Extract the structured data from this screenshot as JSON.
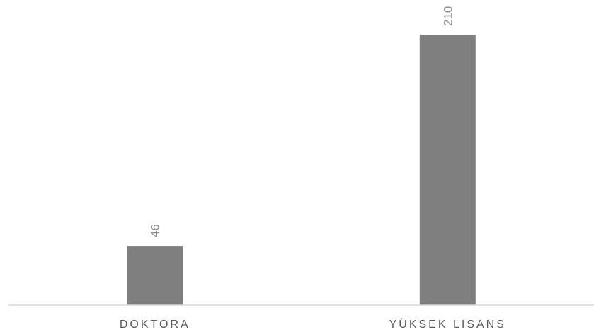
{
  "chart_data": {
    "type": "bar",
    "categories": [
      "DOKTORA",
      "YÜKSEK LISANS"
    ],
    "values": [
      46,
      210
    ],
    "title": "",
    "xlabel": "",
    "ylabel": "",
    "ylim": [
      0,
      230
    ],
    "grid": false,
    "legend": "none",
    "data_labels": [
      "46",
      "210"
    ],
    "colors": {
      "bar": "#7f7f7f",
      "axis": "#d9d9d9",
      "data_label": "#8c8c8c",
      "category_label": "#595959"
    }
  }
}
